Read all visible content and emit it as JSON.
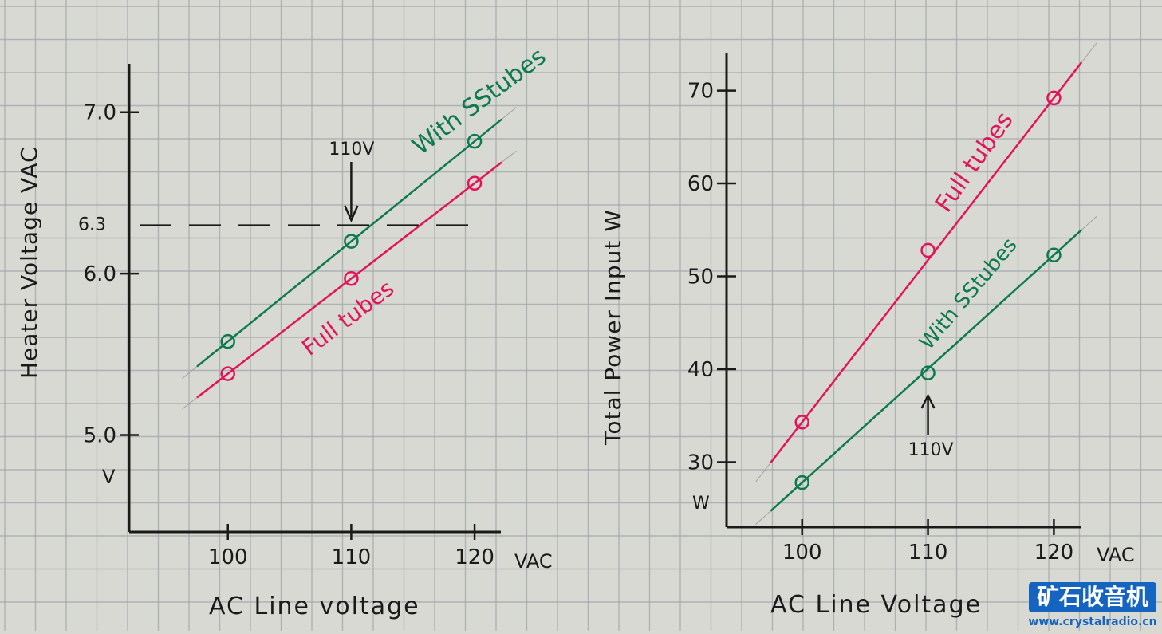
{
  "colors": {
    "paper": "#d9d9d4",
    "grid": "#9fa6ab",
    "ink": "#1a1a1a",
    "green": "#0d7a4e",
    "pink": "#e0145a",
    "watermark_bg": "#1565c0"
  },
  "chart_data": [
    {
      "type": "line",
      "title": "",
      "xlabel": "AC Line voltage",
      "x_unit": "VAC",
      "ylabel": "Heater Voltage VAC",
      "y_unit": "V",
      "x_ticks": [
        "100",
        "110",
        "120"
      ],
      "y_ticks": [
        "5.0",
        "6.0",
        "7.0"
      ],
      "y_ref_label": "6.3",
      "y_ref_value": 6.3,
      "annotation": "110V",
      "annotation_x": 110,
      "xlim": [
        92,
        122
      ],
      "ylim": [
        4.4,
        7.3
      ],
      "series": [
        {
          "name": "With SStubes",
          "color": "#0d7a4e",
          "x": [
            100,
            110,
            120
          ],
          "y": [
            5.58,
            6.2,
            6.82
          ]
        },
        {
          "name": "Full tubes",
          "color": "#e0145a",
          "x": [
            100,
            110,
            120
          ],
          "y": [
            5.38,
            5.97,
            6.56
          ]
        }
      ]
    },
    {
      "type": "line",
      "title": "",
      "xlabel": "AC Line Voltage",
      "x_unit": "VAC",
      "ylabel": "Total Power Input W",
      "y_unit": "W",
      "x_ticks": [
        "100",
        "110",
        "120"
      ],
      "y_ticks": [
        "30",
        "40",
        "50",
        "60",
        "70"
      ],
      "annotation": "110V",
      "annotation_x": 110,
      "xlim": [
        94,
        122
      ],
      "ylim": [
        23,
        74
      ],
      "series": [
        {
          "name": "Full tubes",
          "color": "#e0145a",
          "x": [
            100,
            110,
            120
          ],
          "y": [
            34.3,
            52.8,
            69.2
          ]
        },
        {
          "name": "With SStubes",
          "color": "#0d7a4e",
          "x": [
            100,
            110,
            120
          ],
          "y": [
            27.8,
            39.6,
            52.3
          ]
        }
      ]
    }
  ],
  "watermark": {
    "title": "矿石收音机",
    "url": "www.crystalradio.cn"
  }
}
